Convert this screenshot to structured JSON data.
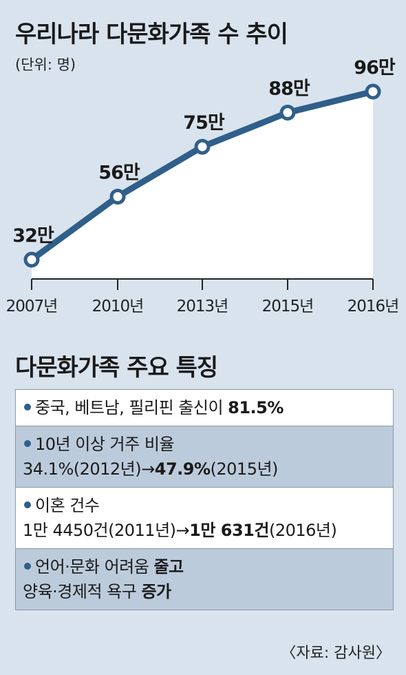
{
  "chart_data": {
    "type": "line",
    "title": "우리나라 다문화가족 수 추이",
    "unit": "(단위: 명)",
    "categories": [
      "2007년",
      "2010년",
      "2013년",
      "2015년",
      "2016년"
    ],
    "values": [
      32,
      56,
      75,
      88,
      96
    ],
    "data_labels": [
      "32만",
      "56만",
      "75만",
      "88만",
      "96만"
    ],
    "ylim": [
      0,
      100
    ],
    "grid": false,
    "colors": {
      "line": "#2f5f8a",
      "area": "#ffffff",
      "background": "#d9e3ee"
    }
  },
  "features": {
    "title": "다문화가족 주요 특징",
    "items": [
      {
        "lines": [
          [
            {
              "t": "중국, 베트남, 필리핀 출신이 "
            },
            {
              "t": "81.5%",
              "b": true
            }
          ]
        ]
      },
      {
        "lines": [
          [
            {
              "t": "10년 이상 거주 비율"
            }
          ],
          [
            {
              "t": "34.1%(2012년)→"
            },
            {
              "t": "47.9%",
              "b": true
            },
            {
              "t": "(2015년)"
            }
          ]
        ]
      },
      {
        "lines": [
          [
            {
              "t": "이혼 건수"
            }
          ],
          [
            {
              "t": "1만 4450건(2011년)→"
            },
            {
              "t": "1만 631건",
              "b": true
            },
            {
              "t": "(2016년)"
            }
          ]
        ]
      },
      {
        "lines": [
          [
            {
              "t": "언어·문화 어려움 "
            },
            {
              "t": "줄고",
              "b": true
            }
          ],
          [
            {
              "t": "양육·경제적 욕구 "
            },
            {
              "t": "증가",
              "b": true
            }
          ]
        ]
      }
    ]
  },
  "source": "〈자료: 감사원〉"
}
